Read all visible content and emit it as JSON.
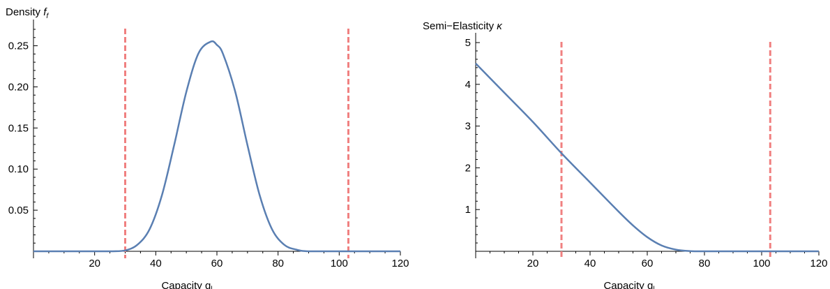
{
  "chart_data": [
    {
      "type": "line",
      "ylabel_main": "Density ",
      "ylabel_italic": "f",
      "ylabel_sub": "f",
      "xlabel_main": "Capacity q",
      "xlabel_sub": "l",
      "xlim": [
        0,
        120
      ],
      "ylim": [
        0,
        0.27
      ],
      "x_ticks": [
        20,
        40,
        60,
        80,
        100,
        120
      ],
      "y_ticks": [
        "0.05",
        "0.10",
        "0.15",
        "0.20",
        "0.25"
      ],
      "y_tick_values": [
        0.05,
        0.1,
        0.15,
        0.2,
        0.25
      ],
      "vlines": [
        30,
        103
      ],
      "series": [
        {
          "x": [
            0,
            10,
            20,
            26,
            30,
            34,
            38,
            42,
            46,
            50,
            54,
            58,
            60,
            62,
            66,
            70,
            74,
            78,
            82,
            86,
            90,
            100,
            110,
            120
          ],
          "y": [
            0,
            0,
            0,
            0,
            0.001,
            0.008,
            0.027,
            0.068,
            0.129,
            0.194,
            0.241,
            0.255,
            0.251,
            0.24,
            0.194,
            0.129,
            0.068,
            0.027,
            0.008,
            0.002,
            0,
            0,
            0,
            0
          ]
        }
      ],
      "colors": {
        "line": "#5a7fb2",
        "vline": "#f08080"
      }
    },
    {
      "type": "line",
      "ylabel_main": "Semi−Elasticity ",
      "ylabel_italic": "κ",
      "xlabel_main": "Capacity q",
      "xlabel_sub": "l",
      "xlim": [
        0,
        120
      ],
      "ylim": [
        0,
        5
      ],
      "x_ticks": [
        20,
        40,
        60,
        80,
        100,
        120
      ],
      "y_ticks": [
        "1",
        "2",
        "3",
        "4",
        "5"
      ],
      "y_tick_values": [
        1,
        2,
        3,
        4,
        5
      ],
      "vlines": [
        30,
        103
      ],
      "series": [
        {
          "x": [
            0,
            10,
            20,
            30,
            40,
            50,
            55,
            60,
            65,
            70,
            75,
            80,
            90,
            100,
            110,
            120
          ],
          "y": [
            4.5,
            3.8,
            3.1,
            2.35,
            1.65,
            0.95,
            0.62,
            0.34,
            0.14,
            0.04,
            0.005,
            0,
            0,
            0,
            0,
            0
          ]
        }
      ],
      "colors": {
        "line": "#5a7fb2",
        "vline": "#f08080"
      }
    }
  ]
}
